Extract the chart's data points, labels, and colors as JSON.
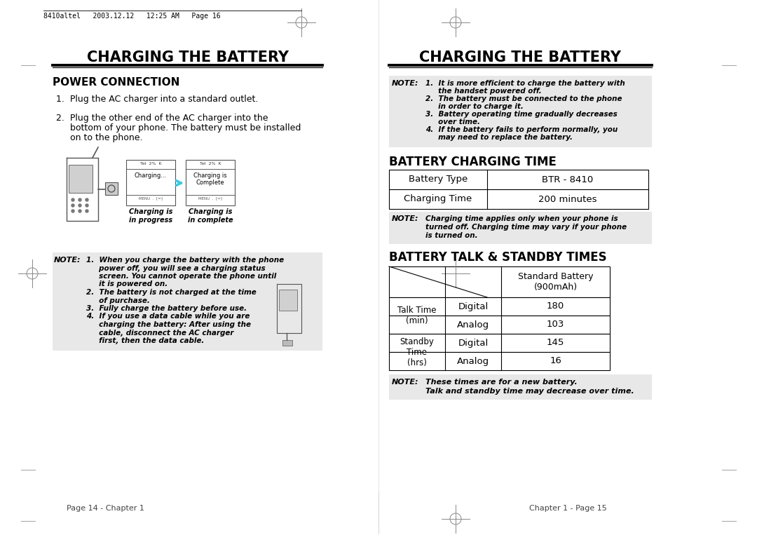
{
  "bg_color": "#ffffff",
  "header_text": "8410altel   2003.12.12   12:25 AM   Page 16",
  "left_title": "CHARGING THE BATTERY",
  "right_title": "CHARGING THE BATTERY",
  "power_connection_header": "POWER CONNECTION",
  "step1": "1.  Plug the AC charger into a standard outlet.",
  "step2_lines": [
    "2.  Plug the other end of the AC charger into the",
    "     bottom of your phone. The battery must be installed",
    "     on to the phone."
  ],
  "left_note_lines": [
    "1.  When you charge the battery with the phone",
    "     power off, you will see a charging status",
    "     screen. You cannot operate the phone until",
    "     it is powered on.",
    "2.  The battery is not charged at the time",
    "     of purchase.",
    "3.  Fully charge the battery before use.",
    "4.  If you use a data cable while you are",
    "     charging the battery: After using the",
    "     cable, disconnect the AC charger",
    "     first, then the data cable."
  ],
  "right_note_lines": [
    "1.  It is more efficient to charge the battery with",
    "     the handset powered off.",
    "2.  The battery must be connected to the phone",
    "     in order to charge it.",
    "3.  Battery operating time gradually decreases",
    "     over time.",
    "4.  If the battery fails to perform normally, you",
    "     may need to replace the battery."
  ],
  "battery_charging_header": "BATTERY CHARGING TIME",
  "charging_col1": [
    "Battery Type",
    "Charging Time"
  ],
  "charging_col2": [
    "BTR - 8410",
    "200 minutes"
  ],
  "charging_note_lines": [
    "Charging time applies only when your phone is",
    "turned off. Charging time may vary if your phone",
    "is turned on."
  ],
  "standby_header": "BATTERY TALK & STANDBY TIMES",
  "standby_header2": "Standard Battery\n(900mAh)",
  "standby_rows": [
    [
      "Talk Time\n(min)",
      "Digital",
      "180"
    ],
    [
      "",
      "Analog",
      "103"
    ],
    [
      "Standby\nTime\n(hrs)",
      "Digital",
      "145"
    ],
    [
      "",
      "Analog",
      "16"
    ]
  ],
  "standby_note_lines": [
    "These times are for a new battery.",
    "Talk and standby time may decrease over time."
  ],
  "footer_left": "Page 14 - Chapter 1",
  "footer_right": "Chapter 1 - Page 15",
  "gray_note": "#e8e8e8",
  "black": "#000000",
  "dark_gray": "#333333",
  "mid_gray": "#888888",
  "light_gray": "#aaaaaa"
}
